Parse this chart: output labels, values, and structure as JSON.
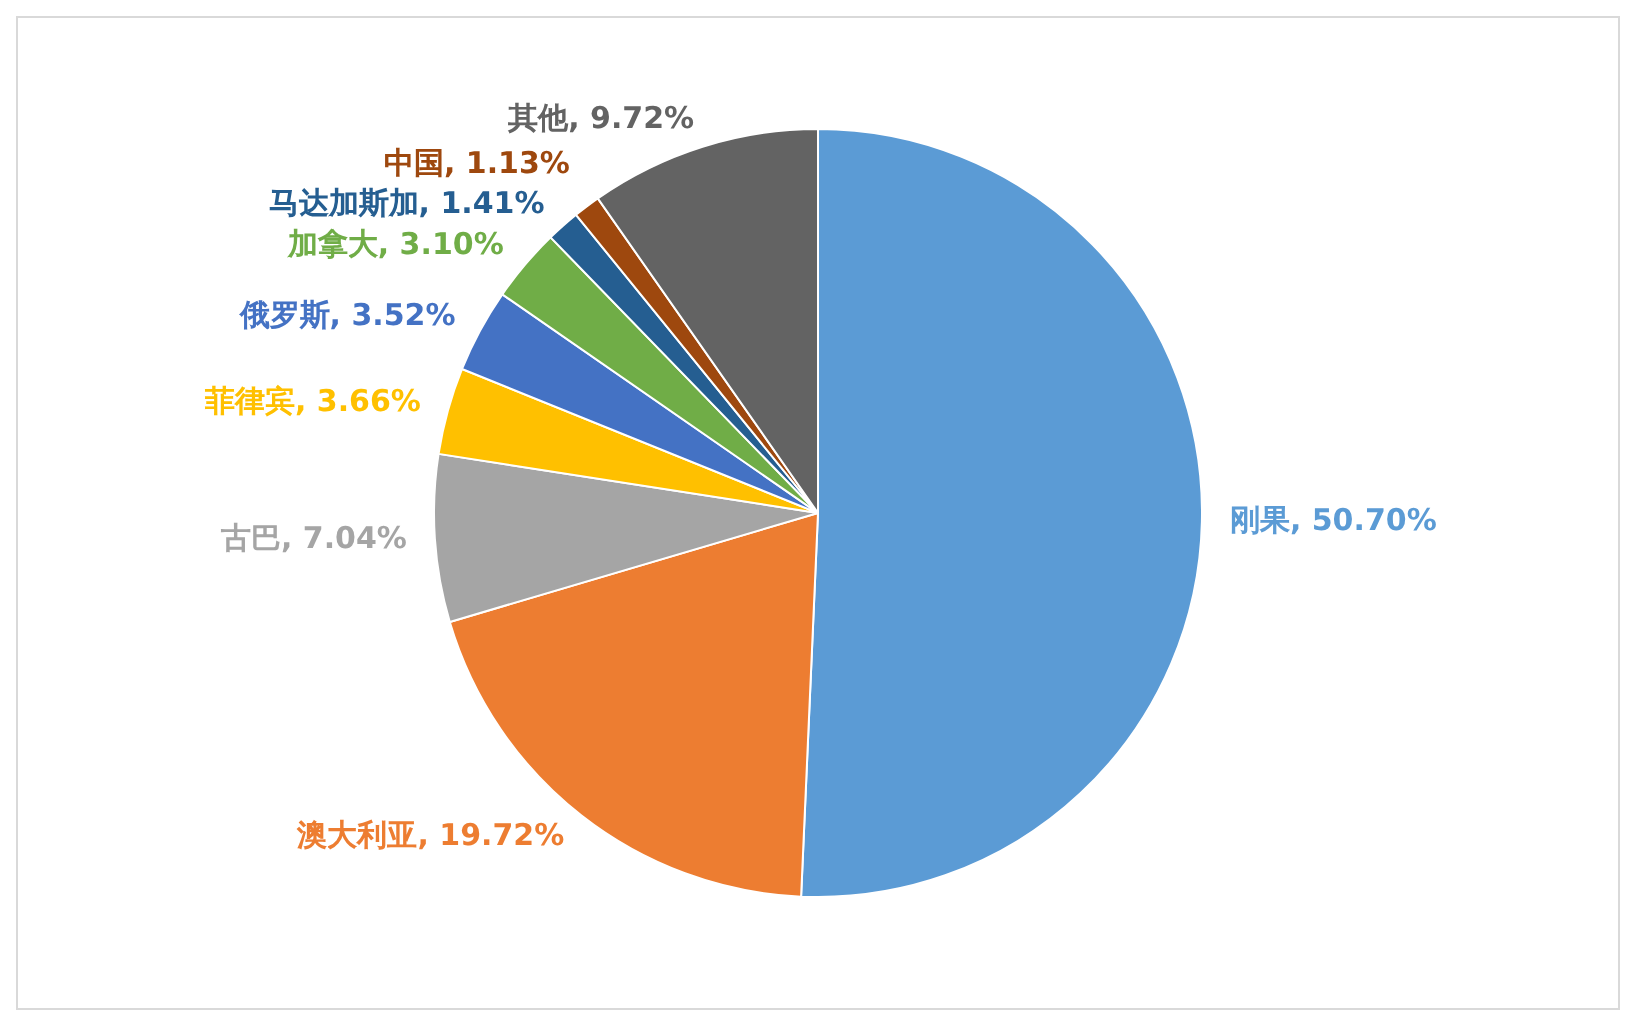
{
  "chart_data": {
    "type": "pie",
    "categories": [
      "刚果",
      "澳大利亚",
      "古巴",
      "菲律宾",
      "俄罗斯",
      "加拿大",
      "马达加斯加",
      "中国",
      "其他"
    ],
    "values": [
      50.7,
      19.72,
      7.04,
      3.66,
      3.52,
      3.1,
      1.41,
      1.13,
      9.72
    ],
    "value_labels": [
      "50.70%",
      "19.72%",
      "7.04%",
      "3.66%",
      "3.52%",
      "3.10%",
      "1.41%",
      "1.13%",
      "9.72%"
    ],
    "colors": [
      "#5b9bd5",
      "#ed7d31",
      "#a5a5a5",
      "#ffc000",
      "#4472c4",
      "#70ad47",
      "#255e91",
      "#9e480e",
      "#636363"
    ],
    "legend": false
  }
}
